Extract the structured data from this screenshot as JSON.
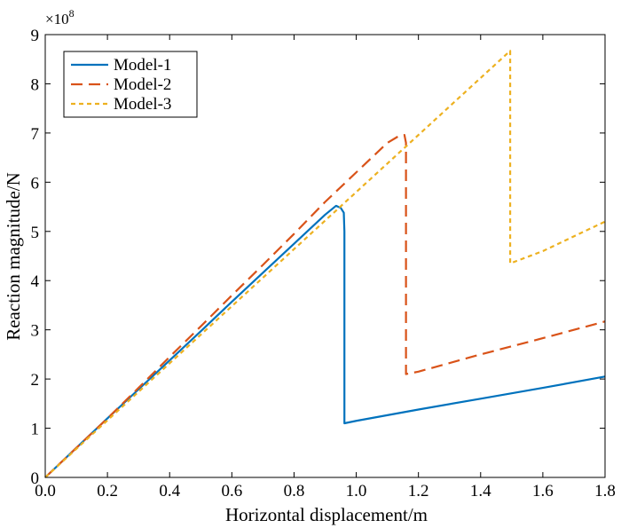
{
  "chart_data": {
    "type": "line",
    "xlabel": "Horizontal displacement/m",
    "ylabel": "Reaction magnitude/N",
    "y_scale_label": "×10",
    "y_scale_exponent": "8",
    "xlim": [
      0,
      1.8
    ],
    "ylim": [
      0,
      9
    ],
    "x_ticks": [
      0,
      0.2,
      0.4,
      0.6,
      0.8,
      1.0,
      1.2,
      1.4,
      1.6,
      1.8
    ],
    "x_tick_labels": [
      "0.0",
      "0.2",
      "0.4",
      "0.6",
      "0.8",
      "1.0",
      "1.2",
      "1.4",
      "1.6",
      "1.8"
    ],
    "y_ticks": [
      0,
      1,
      2,
      3,
      4,
      5,
      6,
      7,
      8,
      9
    ],
    "y_tick_labels": [
      "0",
      "1",
      "2",
      "3",
      "4",
      "5",
      "6",
      "7",
      "8",
      "9"
    ],
    "grid": false,
    "legend_position": "top-left",
    "series": [
      {
        "name": "Model-1",
        "color": "#0072bd",
        "dash": "solid",
        "x": [
          0,
          0.1,
          0.2,
          0.3,
          0.4,
          0.5,
          0.6,
          0.7,
          0.8,
          0.9,
          0.935,
          0.95,
          0.96,
          0.962,
          0.962,
          1.0,
          1.2,
          1.4,
          1.6,
          1.8
        ],
        "y": [
          0,
          0.6,
          1.2,
          1.79,
          2.38,
          2.97,
          3.57,
          4.16,
          4.75,
          5.34,
          5.52,
          5.48,
          5.38,
          5.0,
          1.1,
          1.15,
          1.38,
          1.6,
          1.82,
          2.05
        ]
      },
      {
        "name": "Model-2",
        "color": "#d95319",
        "dash": "long-dash",
        "x": [
          0,
          0.1,
          0.2,
          0.3,
          0.4,
          0.5,
          0.6,
          0.7,
          0.8,
          0.9,
          1.0,
          1.1,
          1.14,
          1.155,
          1.16,
          1.16,
          1.2,
          1.4,
          1.6,
          1.8
        ],
        "y": [
          0,
          0.6,
          1.2,
          1.82,
          2.45,
          3.07,
          3.7,
          4.32,
          4.95,
          5.6,
          6.2,
          6.8,
          6.95,
          6.96,
          6.8,
          2.1,
          2.15,
          2.5,
          2.83,
          3.17
        ]
      },
      {
        "name": "Model-3",
        "color": "#edb120",
        "dash": "short-dash",
        "x": [
          0,
          0.2,
          0.4,
          0.6,
          0.8,
          1.0,
          1.2,
          1.4,
          1.495,
          1.495,
          1.6,
          1.8
        ],
        "y": [
          0,
          1.16,
          2.32,
          3.48,
          4.64,
          5.8,
          6.96,
          8.12,
          8.67,
          4.35,
          4.6,
          5.2
        ]
      }
    ]
  }
}
